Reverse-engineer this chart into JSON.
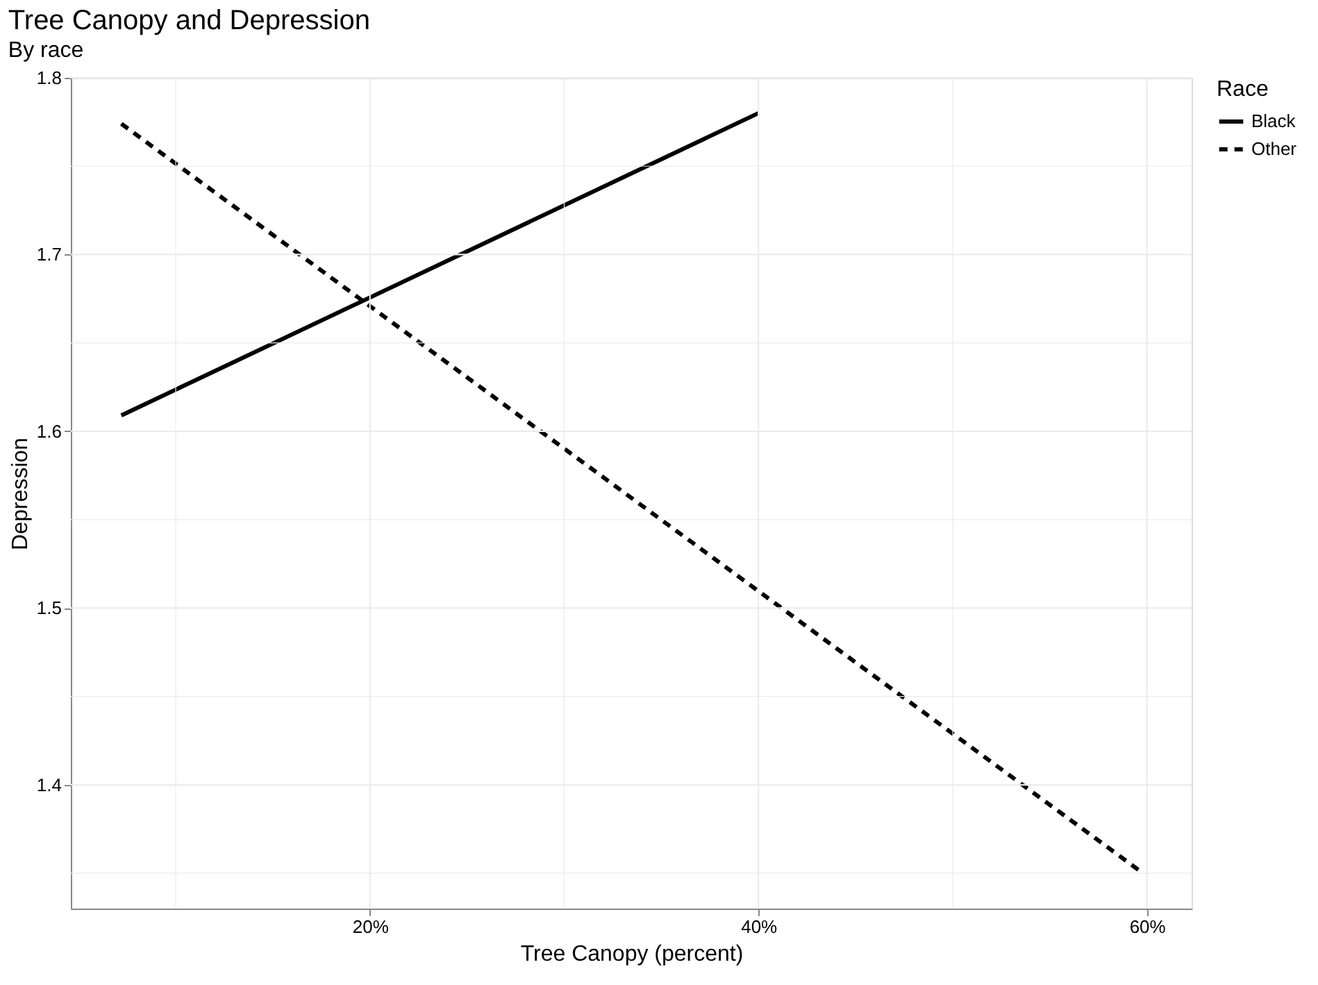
{
  "chart_data": {
    "type": "line",
    "title": "Tree Canopy and Depression",
    "subtitle": "By race",
    "xlabel": "Tree Canopy (percent)",
    "ylabel": "Depression",
    "legend_title": "Race",
    "x": [
      7.2,
      40
    ],
    "series": [
      {
        "name": "Black",
        "color": "#000000",
        "line_style": "solid",
        "values": [
          1.609,
          1.78
        ]
      },
      {
        "name": "Other",
        "color": "#000000",
        "line_style": "dashed",
        "x": [
          7.2,
          59.8
        ],
        "values": [
          1.774,
          1.35
        ]
      }
    ],
    "xlim": [
      4.6,
      62.3
    ],
    "ylim": [
      1.33,
      1.8
    ],
    "xticks": [
      {
        "value": 10,
        "label": null
      },
      {
        "value": 20,
        "label": "20%"
      },
      {
        "value": 30,
        "label": null
      },
      {
        "value": 40,
        "label": "40%"
      },
      {
        "value": 50,
        "label": null
      },
      {
        "value": 60,
        "label": "60%"
      }
    ],
    "yticks": [
      {
        "value": 1.35,
        "label": null
      },
      1.4,
      {
        "value": 1.45,
        "label": null
      },
      1.5,
      {
        "value": 1.55,
        "label": null
      },
      1.6,
      {
        "value": 1.65,
        "label": null
      },
      1.7,
      {
        "value": 1.75,
        "label": null
      },
      1.8
    ],
    "grid": true,
    "legend": "right",
    "marker": "none"
  }
}
